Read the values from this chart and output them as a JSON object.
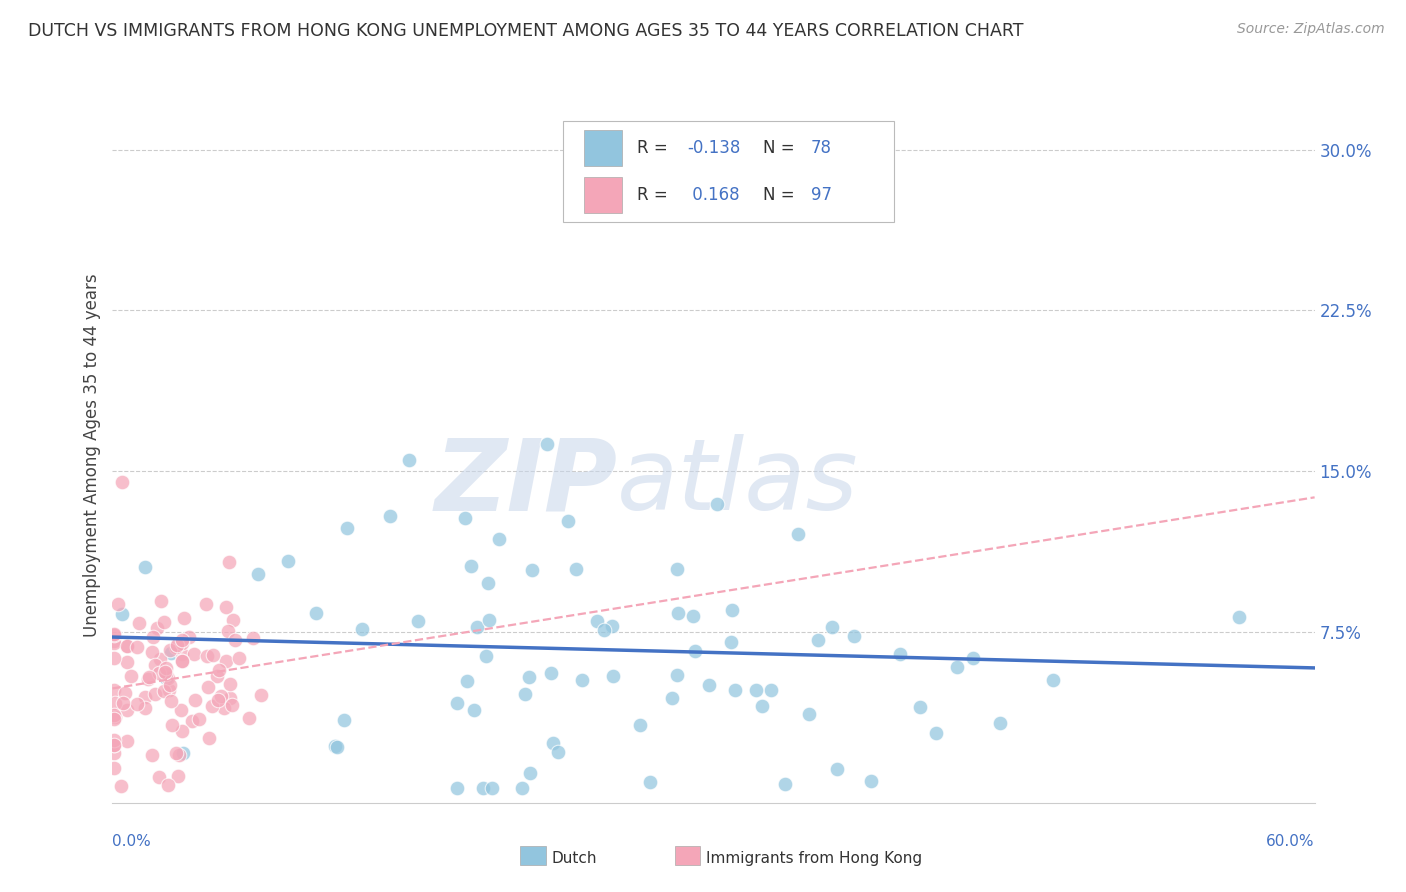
{
  "title": "DUTCH VS IMMIGRANTS FROM HONG KONG UNEMPLOYMENT AMONG AGES 35 TO 44 YEARS CORRELATION CHART",
  "source": "Source: ZipAtlas.com",
  "ylabel": "Unemployment Among Ages 35 to 44 years",
  "xlim": [
    0.0,
    0.6
  ],
  "ylim": [
    -0.005,
    0.32
  ],
  "yticks": [
    0.0,
    0.075,
    0.15,
    0.225,
    0.3
  ],
  "ytick_labels": [
    "",
    "7.5%",
    "15.0%",
    "22.5%",
    "30.0%"
  ],
  "dutch_color": "#92C5DE",
  "hk_color": "#F4A6B8",
  "dutch_R": -0.138,
  "dutch_N": 78,
  "hk_R": 0.168,
  "hk_N": 97,
  "watermark": "ZIPatlas",
  "watermark_zip": "ZIP",
  "watermark_atlas": "atlas",
  "background_color": "#FFFFFF",
  "grid_color": "#CCCCCC",
  "tick_color": "#4472C4",
  "legend_text_color": "#333333",
  "legend_value_color": "#4472C4",
  "title_color": "#333333",
  "source_color": "#999999"
}
